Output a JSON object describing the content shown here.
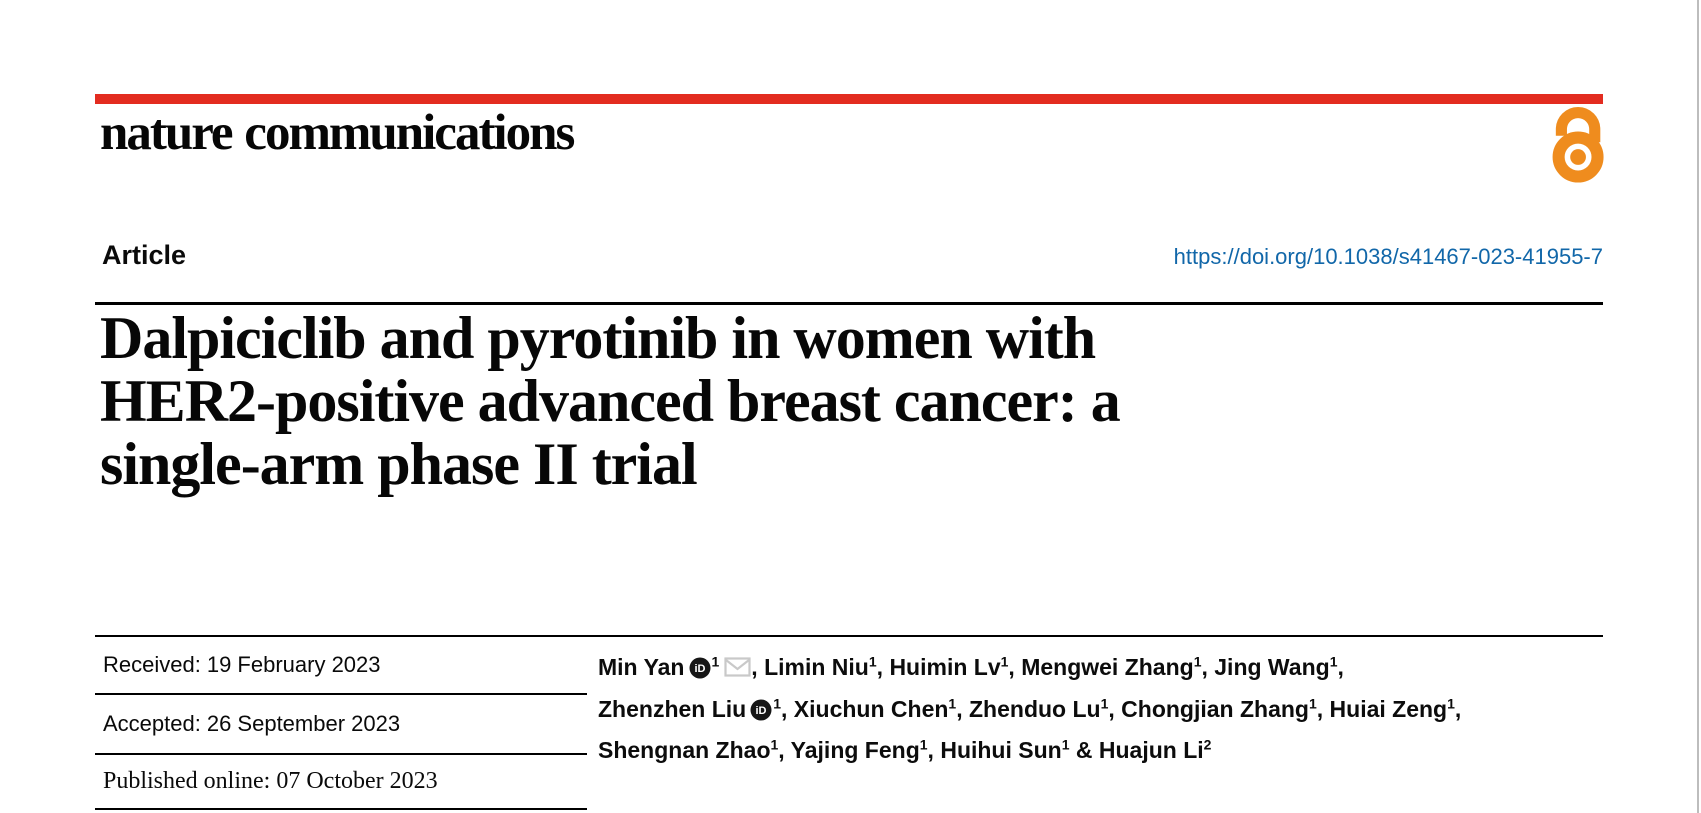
{
  "colors": {
    "brand_red": "#e32c20",
    "oa_orange": "#ef8c1e",
    "link_blue": "#1167a9",
    "icon_gray": "#c9c9c9",
    "orcid_dark": "#161616"
  },
  "masthead": {
    "journal": "nature communications",
    "open_access_icon": "open-access-padlock"
  },
  "header": {
    "article_type": "Article",
    "doi": "https://doi.org/10.1038/s41467-023-41955-7"
  },
  "title": {
    "line1": "Dalpiciclib and pyrotinib in women with",
    "line2": "HER2-positive advanced breast cancer: a",
    "line3": "single-arm phase II trial"
  },
  "dates": [
    {
      "label": "Received:",
      "value": "19 February 2023"
    },
    {
      "label": "Accepted:",
      "value": "26 September 2023"
    },
    {
      "label": "Published online:",
      "value": "07 October 2023"
    }
  ],
  "authors": {
    "lines": [
      [
        {
          "name": "Min Yan",
          "orcid": true,
          "sup": "1",
          "email": true,
          "trail": ", "
        },
        {
          "name": "Limin Niu",
          "sup": "1",
          "trail": ", "
        },
        {
          "name": "Huimin Lv",
          "sup": "1",
          "trail": ", "
        },
        {
          "name": "Mengwei Zhang",
          "sup": "1",
          "trail": ", "
        },
        {
          "name": "Jing Wang",
          "sup": "1",
          "trail": ","
        }
      ],
      [
        {
          "name": "Zhenzhen Liu",
          "orcid": true,
          "sup": "1",
          "trail": ", "
        },
        {
          "name": "Xiuchun Chen",
          "sup": "1",
          "trail": ", "
        },
        {
          "name": "Zhenduo Lu",
          "sup": "1",
          "trail": ", "
        },
        {
          "name": "Chongjian Zhang",
          "sup": "1",
          "trail": ", "
        },
        {
          "name": "Huiai Zeng",
          "sup": "1",
          "trail": ","
        }
      ],
      [
        {
          "name": "Shengnan Zhao",
          "sup": "1",
          "trail": ", "
        },
        {
          "name": "Yajing Feng",
          "sup": "1",
          "trail": ", "
        },
        {
          "name": "Huihui Sun",
          "sup": "1",
          "trail": " & "
        },
        {
          "name": "Huajun Li",
          "sup": "2",
          "trail": ""
        }
      ]
    ]
  }
}
